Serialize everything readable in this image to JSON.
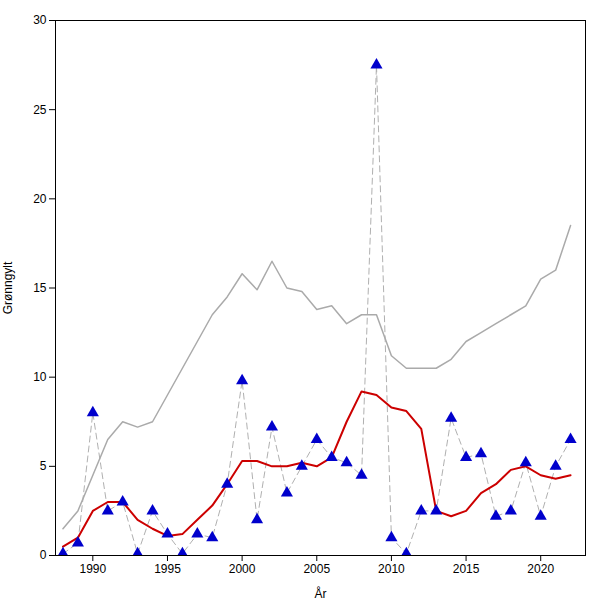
{
  "chart_data": {
    "type": "line",
    "xlabel": "År",
    "ylabel": "Grønngylt",
    "x": [
      1988,
      1989,
      1990,
      1991,
      1992,
      1993,
      1994,
      1995,
      1996,
      1997,
      1998,
      1999,
      2000,
      2001,
      2002,
      2003,
      2004,
      2005,
      2006,
      2007,
      2008,
      2009,
      2010,
      2011,
      2012,
      2013,
      2014,
      2015,
      2016,
      2017,
      2018,
      2019,
      2020,
      2021,
      2022
    ],
    "series": [
      {
        "type": "line",
        "color": "#b0b0b0",
        "line_style": "dashed",
        "values": [
          0.1,
          0.7,
          8.0,
          2.5,
          3.0,
          0.1,
          2.5,
          1.2,
          0.1,
          1.2,
          1.0,
          4.0,
          9.8,
          2.0,
          7.2,
          3.5,
          5.0,
          6.5,
          5.5,
          5.2,
          4.5,
          27.5,
          1.0,
          0.1,
          2.5,
          2.5,
          7.7,
          5.5,
          5.7,
          2.2,
          2.5,
          5.2,
          2.2,
          5.0,
          6.5
        ]
      },
      {
        "type": "line",
        "color": "#aaaaaa",
        "line_style": "solid",
        "values": [
          1.5,
          2.5,
          4.5,
          6.5,
          7.5,
          7.2,
          7.5,
          9.0,
          10.5,
          12.0,
          13.5,
          14.5,
          15.8,
          14.9,
          16.5,
          15.0,
          14.8,
          13.8,
          14.0,
          13.0,
          13.5,
          13.5,
          11.2,
          10.5,
          10.5,
          10.5,
          11.0,
          12.0,
          12.5,
          13.0,
          13.5,
          14.0,
          15.5,
          16.0,
          18.5
        ]
      },
      {
        "type": "line",
        "color": "#cc0000",
        "line_style": "solid",
        "values": [
          0.5,
          1.0,
          2.5,
          3.0,
          3.0,
          2.0,
          1.5,
          1.1,
          1.2,
          2.0,
          2.8,
          4.0,
          5.3,
          5.3,
          5.0,
          5.0,
          5.2,
          5.0,
          5.5,
          7.5,
          9.2,
          9.0,
          8.3,
          8.1,
          7.1,
          2.5,
          2.2,
          2.5,
          3.5,
          4.0,
          4.8,
          5.0,
          4.5,
          4.3,
          4.5
        ]
      },
      {
        "type": "scatter",
        "color": "#0000cc",
        "marker": "triangle",
        "values": [
          0.1,
          0.7,
          8.0,
          2.5,
          3.0,
          0.1,
          2.5,
          1.2,
          0.1,
          1.2,
          1.0,
          4.0,
          9.8,
          2.0,
          7.2,
          3.5,
          5.0,
          6.5,
          5.5,
          5.2,
          4.5,
          27.5,
          1.0,
          0.1,
          2.5,
          2.5,
          7.7,
          5.5,
          5.7,
          2.2,
          2.5,
          5.2,
          2.2,
          5.0,
          6.5
        ]
      }
    ],
    "xlim": [
      1987.5,
      2023
    ],
    "ylim": [
      0,
      30
    ],
    "xticks": [
      1990,
      1995,
      2000,
      2005,
      2010,
      2015,
      2020
    ],
    "yticks": [
      0,
      5,
      10,
      15,
      20,
      25,
      30
    ],
    "grid": false
  }
}
